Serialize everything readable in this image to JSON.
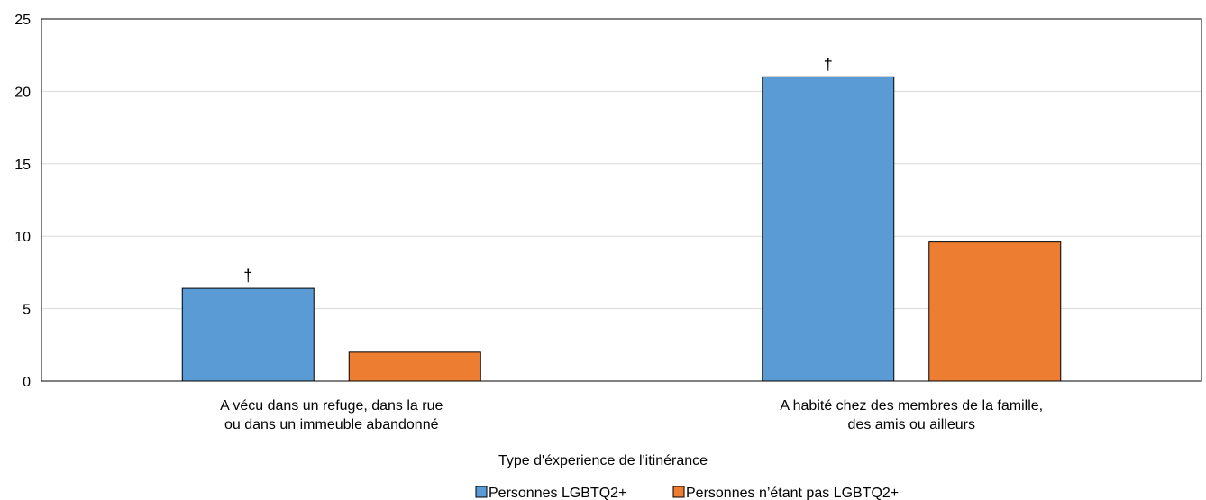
{
  "chart_data": {
    "type": "bar",
    "categories": [
      [
        "A vécu dans un refuge, dans la rue",
        "ou dans un immeuble abandonné"
      ],
      [
        "A habité chez des membres de la famille,",
        "des amis ou ailleurs"
      ]
    ],
    "series": [
      {
        "name": "Personnes LGBTQ2+",
        "values": [
          6.4,
          21.0
        ],
        "color": "#5b9bd5",
        "annotations": [
          "†",
          "†"
        ]
      },
      {
        "name": "Personnes n’étant pas LGBTQ2+",
        "values": [
          2.0,
          9.6
        ],
        "color": "#ed7d31",
        "annotations": [
          "",
          ""
        ]
      }
    ],
    "title": "",
    "xlabel": "Type d'éxperience de l'itinérance",
    "ylabel": "",
    "ylim": [
      0,
      25
    ],
    "yticks": [
      0,
      5,
      10,
      15,
      20,
      25
    ],
    "grid": true,
    "legend_position": "bottom-center"
  }
}
